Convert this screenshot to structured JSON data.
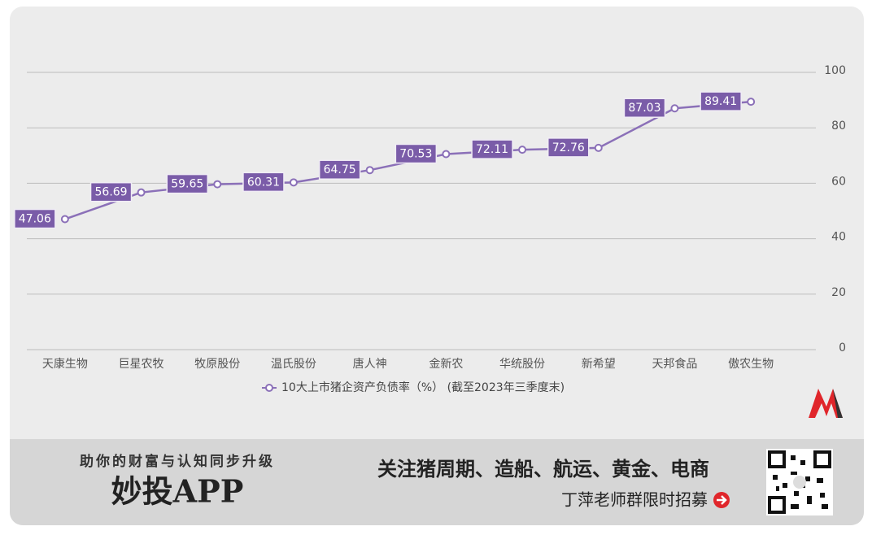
{
  "chart_data": {
    "type": "line",
    "categories": [
      "天康生物",
      "巨星农牧",
      "牧原股份",
      "温氏股份",
      "唐人神",
      "金新农",
      "华统股份",
      "新希望",
      "天邦食品",
      "傲农生物"
    ],
    "series": [
      {
        "name": "10大上市猪企资产负债率（%）  (截至2023年三季度末)",
        "color": "#8b70b8",
        "values": [
          47.06,
          56.69,
          59.65,
          60.31,
          64.75,
          70.53,
          72.11,
          72.76,
          87.03,
          89.41
        ]
      }
    ],
    "ylim": [
      0,
      100
    ],
    "yticks": [
      0,
      20,
      40,
      60,
      80,
      100
    ],
    "grid": true,
    "legend": "bottom"
  },
  "banner": {
    "slogan": "助你的财富与认知同步升级",
    "brand": "妙投APP",
    "headline": "关注猪周期、造船、航运、黄金、电商",
    "cta": "丁萍老师群限时招募"
  }
}
